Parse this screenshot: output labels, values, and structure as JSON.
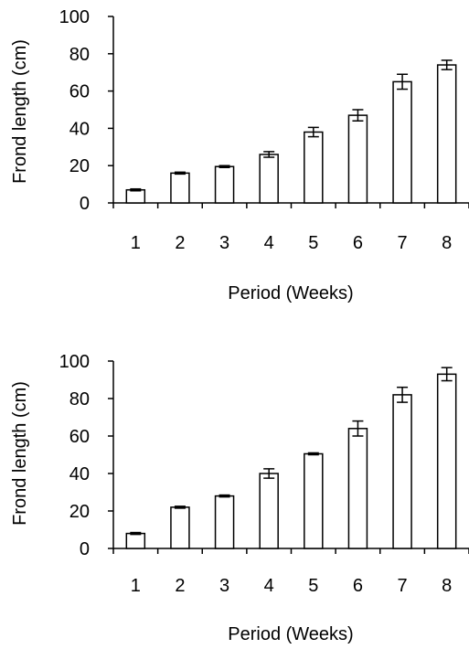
{
  "chart_data": [
    {
      "type": "bar",
      "categories": [
        "1",
        "2",
        "3",
        "4",
        "5",
        "6",
        "7",
        "8"
      ],
      "values": [
        7,
        16,
        19.5,
        26,
        38,
        47,
        65,
        74
      ],
      "errors": [
        0.5,
        0.5,
        0.5,
        1.5,
        2.5,
        3,
        4,
        2.5
      ],
      "xlabel": "Period (Weeks)",
      "ylabel": "Frond length (cm)",
      "ylim": [
        0,
        100
      ],
      "yticks": [
        "0",
        "20",
        "40",
        "60",
        "80",
        "100"
      ],
      "grid": false
    },
    {
      "type": "bar",
      "categories": [
        "1",
        "2",
        "3",
        "4",
        "5",
        "6",
        "7",
        "8"
      ],
      "values": [
        8,
        22,
        28,
        40,
        50.5,
        64,
        82,
        93
      ],
      "errors": [
        0.5,
        0.5,
        0.5,
        2.5,
        0.5,
        4,
        4,
        3.5
      ],
      "xlabel": "Period (Weeks)",
      "ylabel": "Frond length (cm)",
      "ylim": [
        0,
        100
      ],
      "yticks": [
        "0",
        "20",
        "40",
        "60",
        "80",
        "100"
      ],
      "grid": false
    }
  ]
}
